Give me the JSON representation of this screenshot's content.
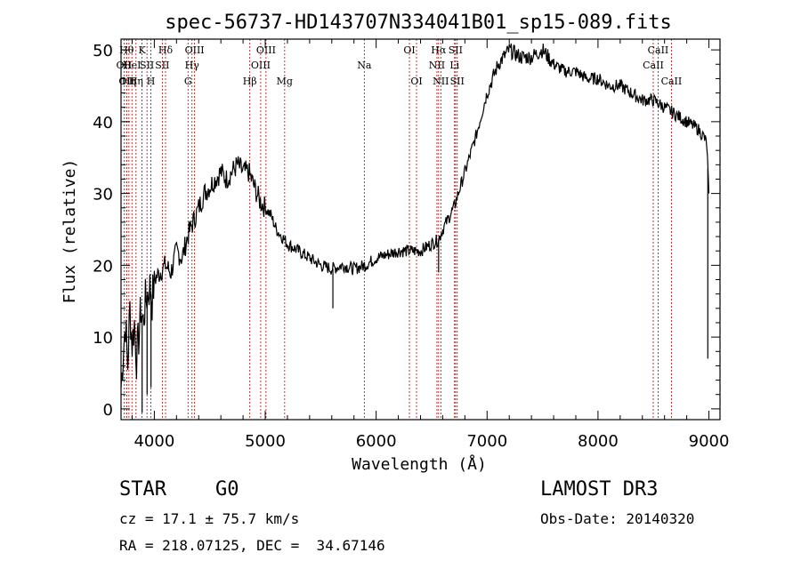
{
  "chart_data": {
    "type": "line",
    "title": "spec-56737-HD143707N334041B01_sp15-089.fits",
    "xlabel": "Wavelength (Å)",
    "ylabel": "Flux (relative)",
    "xlim": [
      3700,
      9100
    ],
    "ylim": [
      -1.5,
      51.5
    ],
    "xticks": [
      4000,
      5000,
      6000,
      7000,
      8000,
      9000
    ],
    "yticks": [
      0,
      10,
      20,
      30,
      40,
      50
    ],
    "series": [
      {
        "name": "flux",
        "x": [
          3700,
          3720,
          3740,
          3760,
          3780,
          3800,
          3820,
          3840,
          3860,
          3880,
          3900,
          3920,
          3940,
          3960,
          3980,
          4000,
          4050,
          4100,
          4150,
          4200,
          4250,
          4300,
          4350,
          4400,
          4450,
          4500,
          4550,
          4600,
          4650,
          4700,
          4750,
          4800,
          4850,
          4900,
          4950,
          5000,
          5050,
          5100,
          5150,
          5200,
          5300,
          5400,
          5500,
          5600,
          5700,
          5800,
          5900,
          6000,
          6100,
          6200,
          6300,
          6400,
          6500,
          6560,
          6600,
          6700,
          6800,
          6900,
          7000,
          7100,
          7200,
          7300,
          7400,
          7500,
          7600,
          7700,
          7800,
          7900,
          8000,
          8100,
          8200,
          8300,
          8400,
          8500,
          8600,
          8700,
          8800,
          8900,
          8950,
          8980,
          9000
        ],
        "y": [
          3,
          8,
          12,
          6,
          14,
          9,
          12,
          7,
          10,
          14,
          12,
          15,
          16,
          17,
          15,
          18,
          19,
          20,
          19,
          22,
          21,
          24,
          26,
          28,
          30,
          31,
          32,
          33,
          32,
          33,
          34,
          33,
          33,
          31,
          29,
          28,
          27,
          25,
          24,
          23,
          22,
          21,
          20,
          19.5,
          20,
          19.5,
          20,
          21,
          21.5,
          22,
          22,
          22,
          23,
          23.5,
          25,
          28,
          33,
          38,
          44,
          48,
          50,
          49,
          49,
          50,
          48,
          47,
          47,
          46,
          46,
          45,
          45,
          44,
          43,
          43,
          42,
          41,
          40,
          39,
          38,
          37,
          30
        ]
      }
    ],
    "absorption_dips": [
      {
        "x": 3890,
        "y": -0.5
      },
      {
        "x": 3935,
        "y": 2
      },
      {
        "x": 3970,
        "y": 3
      },
      {
        "x": 5610,
        "y": 14
      },
      {
        "x": 6563,
        "y": 19
      },
      {
        "x": 8990,
        "y": 7
      }
    ],
    "reference_lines": [
      {
        "x": 3727,
        "row": 2,
        "label": "OII"
      },
      {
        "x": 3750,
        "row": 1,
        "label": "Hθ"
      },
      {
        "x": 3750,
        "row": 3,
        "label": "OII"
      },
      {
        "x": 3771,
        "row": 3,
        "label": "Hη"
      },
      {
        "x": 3798,
        "row": 2,
        "label": "HeI"
      },
      {
        "x": 3835,
        "row": 3,
        "label": "Hη"
      },
      {
        "x": 3889,
        "row": 1,
        "label": "K"
      },
      {
        "x": 3934,
        "row": 2,
        "label": "SII"
      },
      {
        "x": 3969,
        "row": 3,
        "label": "H"
      },
      {
        "x": 4101,
        "row": 1,
        "label": "Hδ"
      },
      {
        "x": 4072,
        "row": 2,
        "label": "SII"
      },
      {
        "x": 4304,
        "row": 3,
        "label": "G"
      },
      {
        "x": 4340,
        "row": 2,
        "label": "Hγ"
      },
      {
        "x": 4363,
        "row": 1,
        "label": "OIII"
      },
      {
        "x": 4861,
        "row": 3,
        "label": "Hβ"
      },
      {
        "x": 4959,
        "row": 2,
        "label": "OIII"
      },
      {
        "x": 5007,
        "row": 1,
        "label": "OIII"
      },
      {
        "x": 5175,
        "row": 3,
        "label": "Mg"
      },
      {
        "x": 5893,
        "row": 2,
        "label": "Na"
      },
      {
        "x": 6300,
        "row": 1,
        "label": "OI"
      },
      {
        "x": 6364,
        "row": 3,
        "label": "OI"
      },
      {
        "x": 6548,
        "row": 2,
        "label": "NII"
      },
      {
        "x": 6563,
        "row": 1,
        "label": "Hα"
      },
      {
        "x": 6583,
        "row": 3,
        "label": "NII"
      },
      {
        "x": 6707,
        "row": 2,
        "label": "Li"
      },
      {
        "x": 6716,
        "row": 1,
        "label": "SII"
      },
      {
        "x": 6731,
        "row": 3,
        "label": "SII"
      },
      {
        "x": 8498,
        "row": 2,
        "label": "CaII"
      },
      {
        "x": 8542,
        "row": 1,
        "label": "CaII"
      },
      {
        "x": 8662,
        "row": 3,
        "label": "CaII"
      }
    ]
  },
  "info": {
    "class": "STAR",
    "subclass": "G0",
    "survey": "LAMOST DR3",
    "cz_line": "cz = 17.1 ± 75.7 km/s",
    "obs_date_line": "Obs-Date: 20140320",
    "radec_line": "RA = 218.07125, DEC =  34.67146"
  }
}
